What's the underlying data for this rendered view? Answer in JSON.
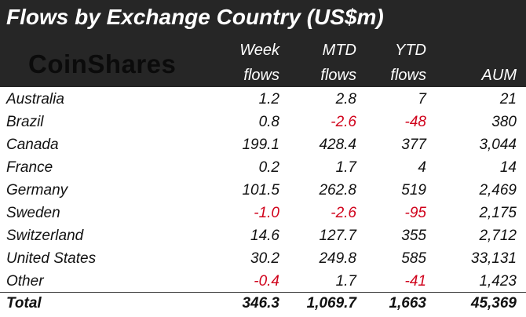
{
  "chart_data": {
    "type": "table",
    "title": "Flows by Exchange Country (US$m)",
    "brand": "CoinShares",
    "columns": [
      {
        "key": "week",
        "top": "Week",
        "bottom": "flows"
      },
      {
        "key": "mtd",
        "top": "MTD",
        "bottom": "flows"
      },
      {
        "key": "ytd",
        "top": "YTD",
        "bottom": "flows"
      },
      {
        "key": "aum",
        "top": "",
        "bottom": "AUM"
      }
    ],
    "rows": [
      {
        "country": "Australia",
        "week": "1.2",
        "mtd": "2.8",
        "ytd": "7",
        "aum": "21"
      },
      {
        "country": "Brazil",
        "week": "0.8",
        "mtd": "-2.6",
        "ytd": "-48",
        "aum": "380"
      },
      {
        "country": "Canada",
        "week": "199.1",
        "mtd": "428.4",
        "ytd": "377",
        "aum": "3,044"
      },
      {
        "country": "France",
        "week": "0.2",
        "mtd": "1.7",
        "ytd": "4",
        "aum": "14"
      },
      {
        "country": "Germany",
        "week": "101.5",
        "mtd": "262.8",
        "ytd": "519",
        "aum": "2,469"
      },
      {
        "country": "Sweden",
        "week": "-1.0",
        "mtd": "-2.6",
        "ytd": "-95",
        "aum": "2,175"
      },
      {
        "country": "Switzerland",
        "week": "14.6",
        "mtd": "127.7",
        "ytd": "355",
        "aum": "2,712"
      },
      {
        "country": "United States",
        "week": "30.2",
        "mtd": "249.8",
        "ytd": "585",
        "aum": "33,131"
      },
      {
        "country": "Other",
        "week": "-0.4",
        "mtd": "1.7",
        "ytd": "-41",
        "aum": "1,423"
      }
    ],
    "total": {
      "country": "Total",
      "week": "346.3",
      "mtd": "1,069.7",
      "ytd": "1,663",
      "aum": "45,369"
    },
    "colors": {
      "header_bg": "#262626",
      "header_text": "#ffffff",
      "negative": "#d0021b",
      "text": "#111111"
    }
  }
}
